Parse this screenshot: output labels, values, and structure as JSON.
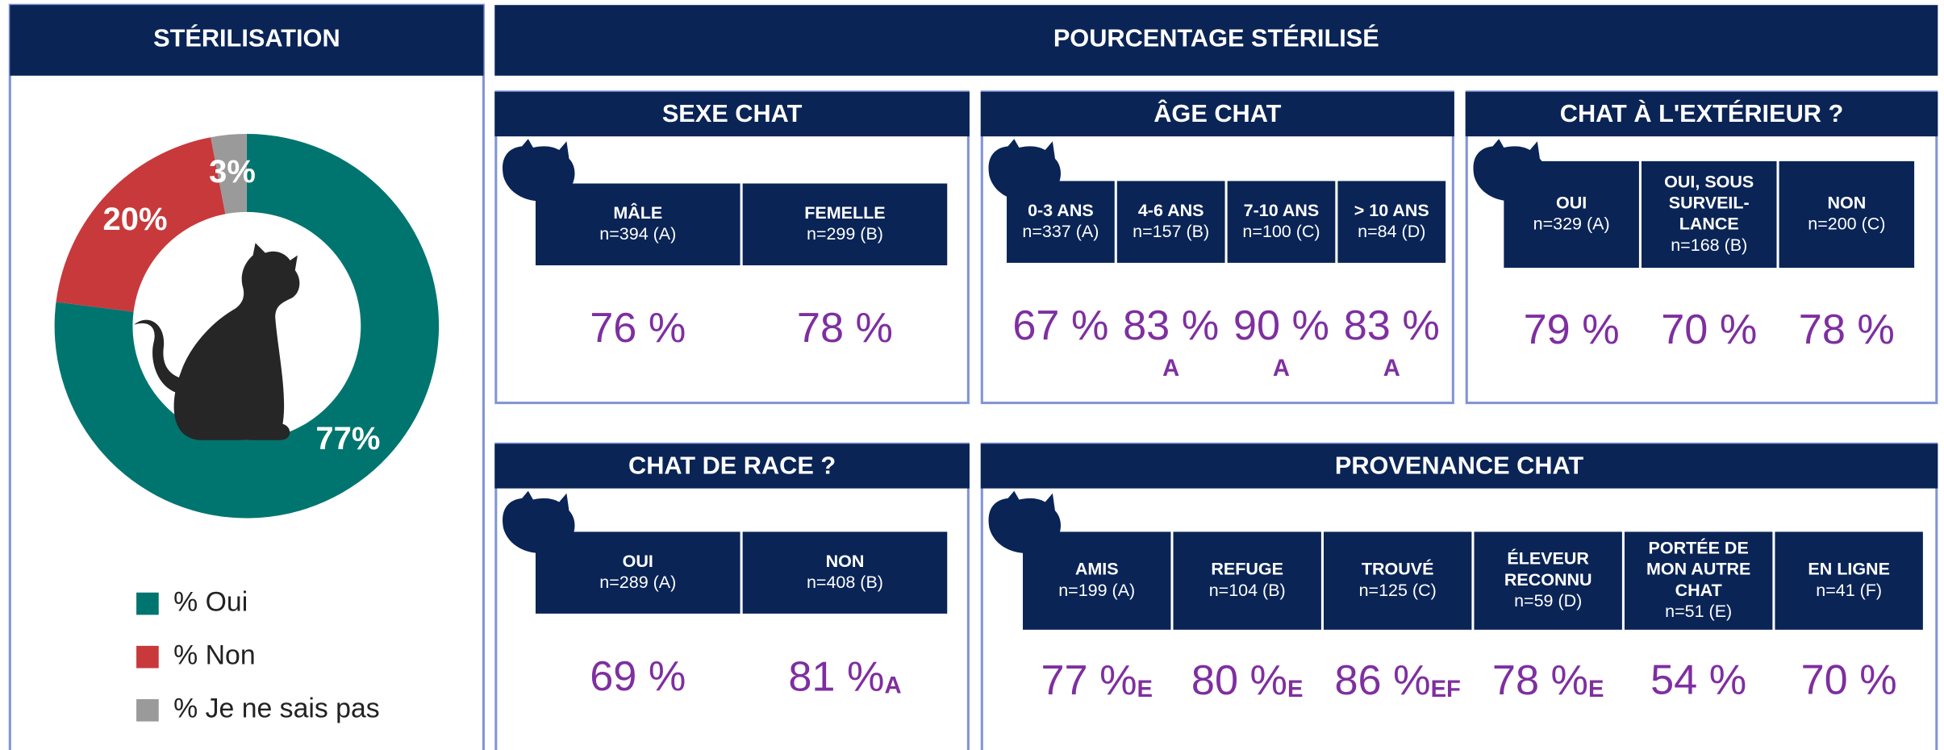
{
  "chart_data": {
    "type": "donut",
    "title": "STÉRILISATION",
    "categories": [
      "% Oui",
      "% Non",
      "% Je ne sais pas"
    ],
    "values": [
      77,
      20,
      3
    ],
    "value_labels": [
      "77%",
      "20%",
      "3%"
    ],
    "colors": [
      "#00756f",
      "#c8393b",
      "#9a9a9a"
    ]
  },
  "title": "POURCENTAGE STÉRILISÉ",
  "panels": [
    {
      "title": "SEXE CHAT",
      "columns": [
        {
          "label": [
            "MÂLE"
          ],
          "n": "n=394 (A)",
          "value": "76 %"
        },
        {
          "label": [
            "FEMELLE"
          ],
          "n": "n=299 (B)",
          "value": "78 %"
        }
      ]
    },
    {
      "title": "ÂGE CHAT",
      "columns": [
        {
          "label": [
            "0-3 ANS"
          ],
          "n": "n=337  (A)",
          "value": "67 %"
        },
        {
          "label": [
            "4-6 ANS"
          ],
          "n": "n=157  (B)",
          "value": "83 %",
          "sig": "A"
        },
        {
          "label": [
            "7-10 ANS"
          ],
          "n": "n=100 (C)",
          "value": "90 %",
          "sig": "A"
        },
        {
          "label": [
            "> 10 ANS"
          ],
          "n": "n=84 (D)",
          "value": "83 %",
          "sig": "A"
        }
      ]
    },
    {
      "title": "CHAT À L'EXTÉRIEUR ?",
      "columns": [
        {
          "label": [
            "OUI"
          ],
          "n": "n=329 (A)",
          "value": "79 %"
        },
        {
          "label": [
            "OUI, SOUS",
            "SURVEIL-",
            "LANCE"
          ],
          "n": "n=168 (B)",
          "value": "70 %"
        },
        {
          "label": [
            "NON"
          ],
          "n": "n=200 (C)",
          "value": "78 %"
        }
      ]
    },
    {
      "title": "CHAT DE RACE ?",
      "columns": [
        {
          "label": [
            "OUI"
          ],
          "n": "n=289 (A)",
          "value": "69 %"
        },
        {
          "label": [
            "NON"
          ],
          "n": "n=408 (B)",
          "value": "81 %",
          "sig": "A"
        }
      ]
    },
    {
      "title": "PROVENANCE CHAT",
      "columns": [
        {
          "label": [
            "AMIS"
          ],
          "n": "n=199  (A)",
          "value": "77 %",
          "sig": "E"
        },
        {
          "label": [
            "REFUGE"
          ],
          "n": "n=104 (B)",
          "value": "80 %",
          "sig": "E"
        },
        {
          "label": [
            "TROUVÉ"
          ],
          "n": "n=125 (C)",
          "value": "86 %",
          "sig": "EF"
        },
        {
          "label": [
            "ÉLEVEUR",
            "RECONNU"
          ],
          "n": "n=59 (D)",
          "value": "78 %",
          "sig": "E"
        },
        {
          "label": [
            "PORTÉE DE",
            "MON AUTRE",
            "CHAT"
          ],
          "n": "n=51 (E)",
          "value": "54 %"
        },
        {
          "label": [
            "EN LIGNE"
          ],
          "n": "n=41 (F)",
          "value": "70 %"
        }
      ]
    }
  ]
}
